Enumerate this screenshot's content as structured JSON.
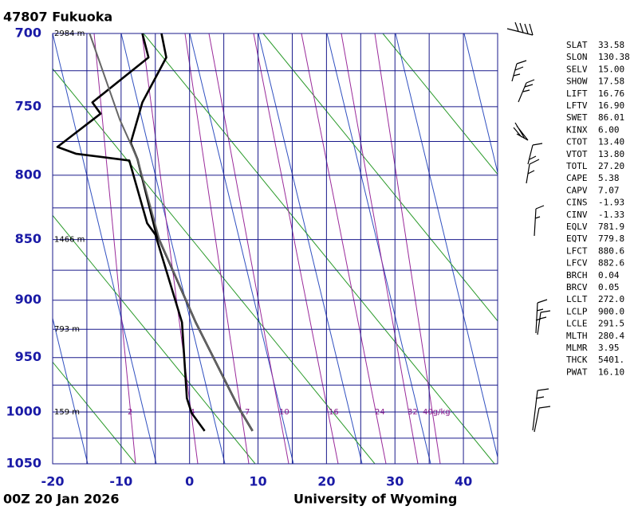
{
  "chart_data": {
    "type": "skewt",
    "title": "47807  Fukuoka",
    "footer_left": "00Z 20 Jan 2026",
    "footer_right": "University of Wyoming",
    "xlim": [
      -20,
      45
    ],
    "xticks": [
      -20,
      -10,
      0,
      10,
      20,
      30,
      40
    ],
    "xgrid": [
      -20,
      -15,
      -10,
      -5,
      0,
      5,
      10,
      15,
      20,
      25,
      30,
      35,
      40,
      45
    ],
    "ylim": [
      700,
      1050
    ],
    "log_y": true,
    "yticks": [
      700,
      750,
      800,
      850,
      900,
      950,
      1000,
      1050
    ],
    "ygrid": [
      700,
      725,
      750,
      775,
      800,
      825,
      850,
      875,
      900,
      925,
      950,
      975,
      1000,
      1025,
      1050
    ],
    "height_labels": [
      {
        "text": "2984 m",
        "pressure": 700
      },
      {
        "text": "1466 m",
        "pressure": 850
      },
      {
        "text": "793 m",
        "pressure": 925
      },
      {
        "text": "159 m",
        "pressure": 1000
      }
    ],
    "mixing_ratio_labels": [
      "2",
      "4",
      "7",
      "10",
      "16",
      "24",
      "32",
      "40g/kg"
    ],
    "series": [
      {
        "color": "#000000",
        "width": 2.6,
        "values": [
          -4.1,
          -3.4,
          -6.9,
          -7.6,
          -8.6,
          -7.6,
          -5.0,
          0.9,
          7.1,
          9.2
        ],
        "pressure": [
          700,
          716,
          747,
          759,
          776,
          788,
          843,
          919,
          995,
          1018
        ]
      },
      {
        "color": "#000000",
        "width": 2.6,
        "values": [
          -6.9,
          -6.0,
          -14.2,
          -13.0,
          -19.3,
          -16.6,
          -8.8,
          -6.2,
          -5.0,
          -1.1,
          -0.4,
          0.3,
          2.2
        ],
        "pressure": [
          700,
          716,
          747,
          755,
          779,
          784,
          789,
          837,
          846,
          919,
          987,
          1001,
          1018
        ]
      },
      {
        "color": "#666666",
        "width": 2,
        "values": [
          9.2,
          7.1,
          0.9,
          -4.4,
          -7.6,
          -10.2,
          -14.6
        ],
        "pressure": [
          1018,
          995,
          919,
          850,
          788,
          759,
          700
        ]
      }
    ],
    "indices": [
      [
        "SLAT",
        "33.58"
      ],
      [
        "SLON",
        "130.38"
      ],
      [
        "SELV",
        "15.00"
      ],
      [
        "SHOW",
        "17.58"
      ],
      [
        "LIFT",
        "16.76"
      ],
      [
        "LFTV",
        "16.90"
      ],
      [
        "SWET",
        "86.01"
      ],
      [
        "KINX",
        "6.00"
      ],
      [
        "CTOT",
        "13.40"
      ],
      [
        "VTOT",
        "13.80"
      ],
      [
        "TOTL",
        "27.20"
      ],
      [
        "CAPE",
        "5.38"
      ],
      [
        "CAPV",
        "7.07"
      ],
      [
        "CINS",
        "-1.93"
      ],
      [
        "CINV",
        "-1.33"
      ],
      [
        "EQLV",
        "781.9"
      ],
      [
        "EQTV",
        "779.8"
      ],
      [
        "LFCT",
        "880.6"
      ],
      [
        "LFCV",
        "882.6"
      ],
      [
        "BRCH",
        "0.04"
      ],
      [
        "BRCV",
        "0.05"
      ],
      [
        "LCLT",
        "272.0"
      ],
      [
        "LCLP",
        "900.0"
      ],
      [
        "LCLE",
        "291.5"
      ],
      [
        "MLTH",
        "280.4"
      ],
      [
        "MLMR",
        "3.95"
      ],
      [
        "THCK",
        "5401."
      ],
      [
        "PWAT",
        "16.10"
      ]
    ]
  }
}
